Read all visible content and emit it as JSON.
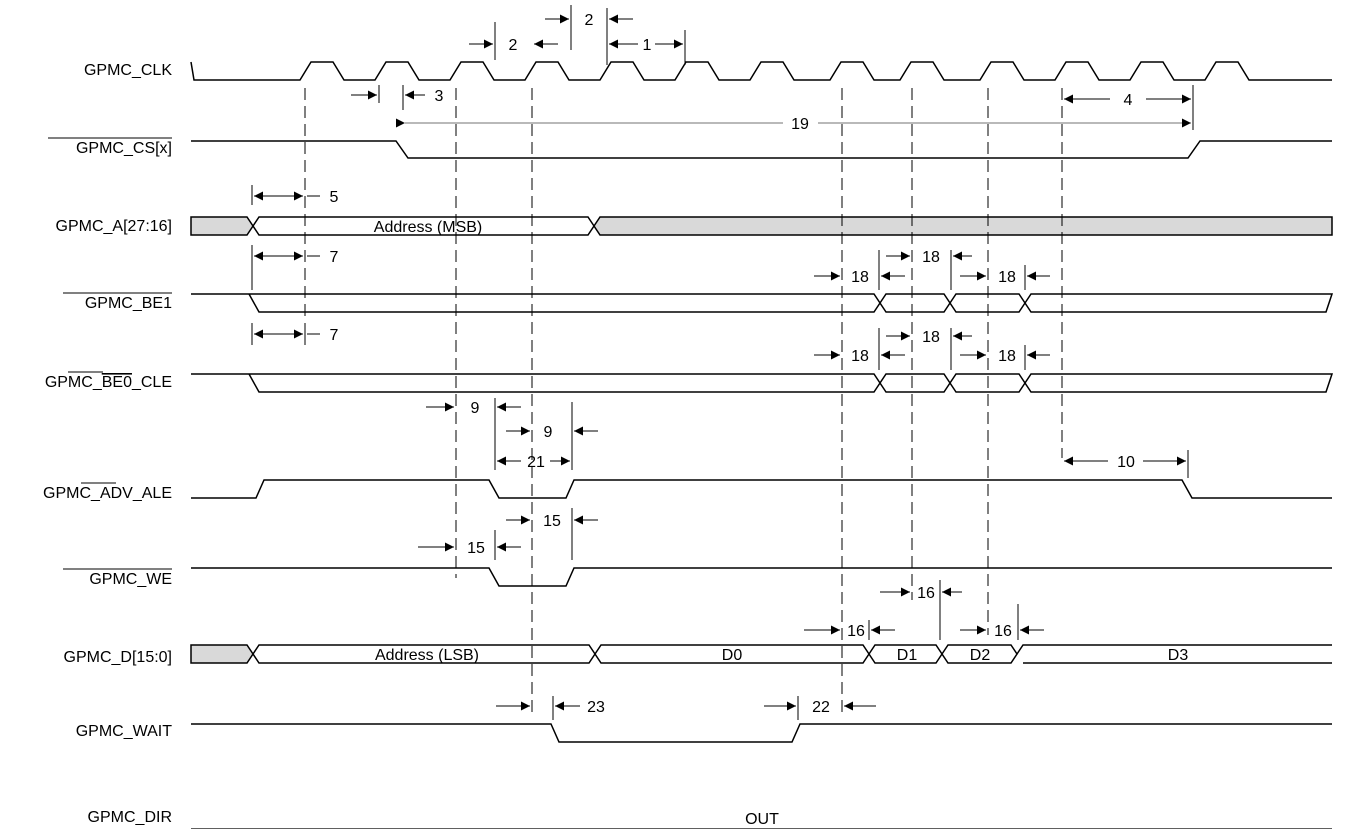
{
  "signals": {
    "clk": "GPMC_CLK",
    "cs": "GPMC_CS[x]",
    "a": "GPMC_A[27:16]",
    "be1": "GPMC_BE1",
    "be0_prefix": "GPMC_",
    "be0_bar": "BE0",
    "be0_suffix": "_CLE",
    "adv_prefix": "GPMC_",
    "adv_bar": "ADV",
    "adv_suffix": "_ALE",
    "we": "GPMC_WE",
    "d": "GPMC_D[15:0]",
    "wait": "GPMC_WAIT",
    "dir": "GPMC_DIR"
  },
  "bus_values": {
    "a_addr": "Address (MSB)",
    "d_addr": "Address (LSB)",
    "d0": "D0",
    "d1": "D1",
    "d2": "D2",
    "d3": "D3",
    "dir": "OUT"
  },
  "timing_params": {
    "p1": "1",
    "p2": "2",
    "p3": "3",
    "p4": "4",
    "p5": "5",
    "p7": "7",
    "p9": "9",
    "p10": "10",
    "p15": "15",
    "p16": "16",
    "p18": "18",
    "p19": "19",
    "p21": "21",
    "p22": "22",
    "p23": "23"
  }
}
